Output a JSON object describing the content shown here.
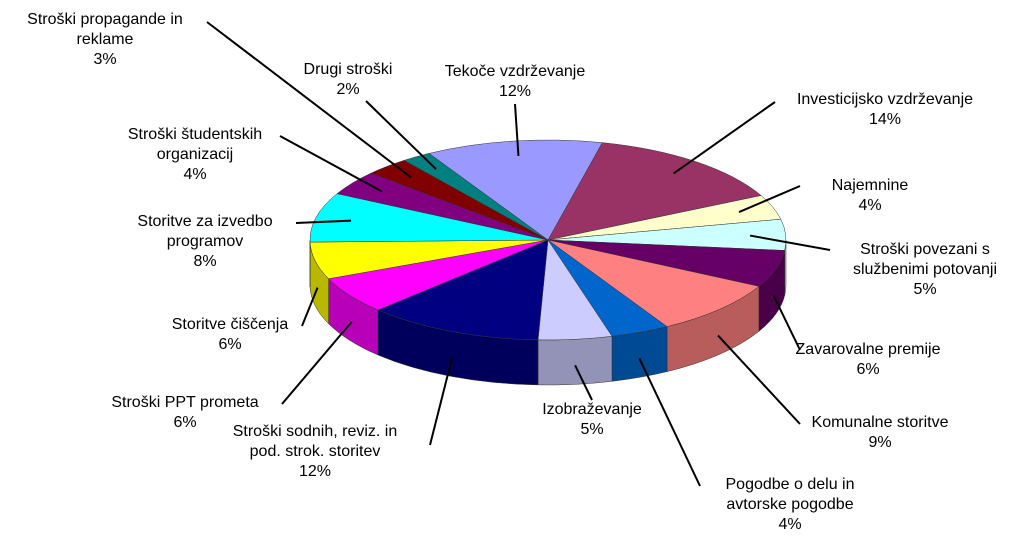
{
  "chart_data": {
    "type": "pie",
    "categories": [
      "Tekoče vzdrževanje",
      "Investicijsko vzdrževanje",
      "Najemnine",
      "Stroški povezani s službenimi potovanji",
      "Zavarovalne premije",
      "Komunalne storitve",
      "Pogodbe o delu in avtorske pogodbe",
      "Izobraževanje",
      "Stroški sodnih, reviz. in pod. strok. storitev",
      "Stroški PPT prometa",
      "Storitve čiščenja",
      "Storitve za izvedbo programov",
      "Stroški študentskih organizacij",
      "Stroški propagande in reklame",
      "Drugi stroški"
    ],
    "values": [
      12,
      14,
      4,
      5,
      6,
      9,
      4,
      5,
      12,
      6,
      6,
      8,
      4,
      3,
      2
    ],
    "value_labels": [
      "12%",
      "14%",
      "4%",
      "5%",
      "6%",
      "9%",
      "4%",
      "5%",
      "12%",
      "6%",
      "6%",
      "8%",
      "4%",
      "3%",
      "2%"
    ],
    "colors": [
      "#9999ff",
      "#993366",
      "#ffffcc",
      "#ccffff",
      "#660066",
      "#ff8080",
      "#0066cc",
      "#ccccff",
      "#000080",
      "#ff00ff",
      "#ffff00",
      "#00ffff",
      "#800080",
      "#800000",
      "#008080"
    ]
  }
}
